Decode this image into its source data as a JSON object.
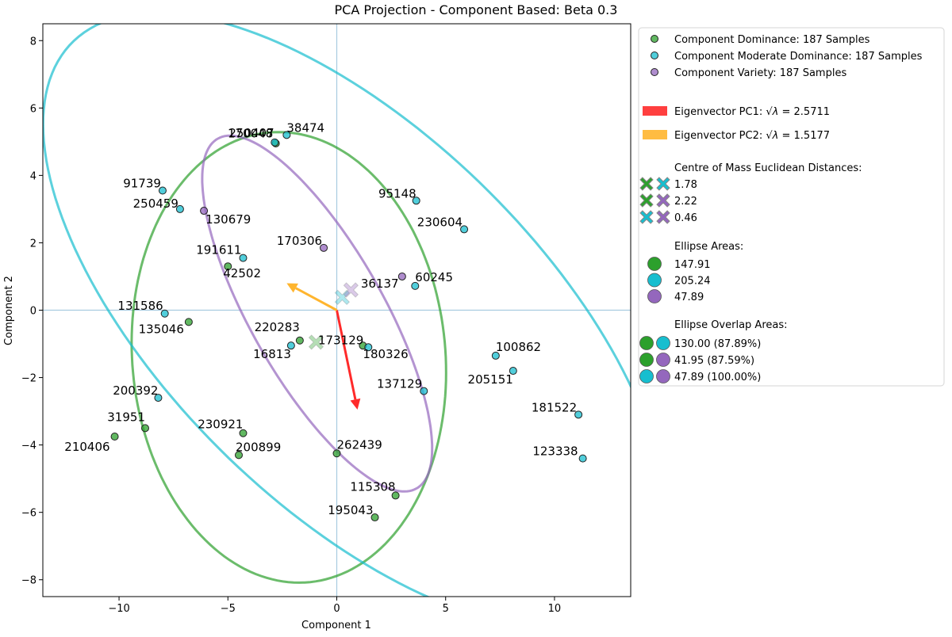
{
  "chart_data": {
    "type": "scatter",
    "title": "PCA Projection - Component Based: Beta 0.3",
    "xlabel": "Component 1",
    "ylabel": "Component 2",
    "xlim": [
      -13.5,
      13.5
    ],
    "ylim": [
      -8.5,
      8.5
    ],
    "xticks": [
      -10,
      -5,
      0,
      5,
      10
    ],
    "yticks": [
      -8,
      -6,
      -4,
      -2,
      0,
      2,
      4,
      6,
      8
    ],
    "xtick_labels": [
      "−10",
      "−5",
      "0",
      "5",
      "10"
    ],
    "ytick_labels": [
      "−8",
      "−6",
      "−4",
      "−2",
      "0",
      "2",
      "4",
      "6",
      "8"
    ],
    "grid": false,
    "reference_lines": {
      "x": 0,
      "y": 0,
      "color": "#a8cbe0"
    },
    "colors": {
      "dominance": "#2ca02c",
      "moderate": "#17becf",
      "variety": "#9467bd",
      "pc1": "#ff2a2a",
      "pc2": "#ffb52e"
    },
    "series": [
      {
        "name": "Component Dominance: 187 Samples",
        "key": "dominance",
        "points": [
          {
            "x": -2.8,
            "y": 4.95,
            "label": "250407"
          },
          {
            "x": -5.0,
            "y": 1.3,
            "label": "42502"
          },
          {
            "x": -6.8,
            "y": -0.35,
            "label": "135046"
          },
          {
            "x": -1.7,
            "y": -0.9,
            "label": "220283"
          },
          {
            "x": 1.2,
            "y": -1.05,
            "label": "180326"
          },
          {
            "x": -8.8,
            "y": -3.5,
            "label": "31951"
          },
          {
            "x": -10.2,
            "y": -3.75,
            "label": "210406"
          },
          {
            "x": -4.3,
            "y": -3.65,
            "label": "230921"
          },
          {
            "x": -4.5,
            "y": -4.3,
            "label": "200899"
          },
          {
            "x": 0.0,
            "y": -4.25,
            "label": "262439"
          },
          {
            "x": 2.7,
            "y": -5.5,
            "label": "115308"
          },
          {
            "x": 1.75,
            "y": -6.15,
            "label": "195043"
          }
        ]
      },
      {
        "name": "Component Moderate Dominance: 187 Samples",
        "key": "moderate",
        "points": [
          {
            "x": -2.3,
            "y": 5.2,
            "label": "38474"
          },
          {
            "x": -2.85,
            "y": 4.98,
            "label": "170048"
          },
          {
            "x": -8.0,
            "y": 3.55,
            "label": "91739"
          },
          {
            "x": -7.2,
            "y": 3.0,
            "label": "250459"
          },
          {
            "x": -4.3,
            "y": 1.55,
            "label": "191611"
          },
          {
            "x": -7.9,
            "y": -0.1,
            "label": "131586"
          },
          {
            "x": -2.1,
            "y": -1.05,
            "label": "16813"
          },
          {
            "x": 1.45,
            "y": -1.1,
            "label": "173129"
          },
          {
            "x": 3.65,
            "y": 3.25,
            "label": "95148"
          },
          {
            "x": 5.85,
            "y": 2.4,
            "label": "230604"
          },
          {
            "x": 3.6,
            "y": 0.72,
            "label": "60245"
          },
          {
            "x": 7.3,
            "y": -1.35,
            "label": "100862"
          },
          {
            "x": 8.1,
            "y": -1.8,
            "label": "205151"
          },
          {
            "x": 4.0,
            "y": -2.4,
            "label": "137129"
          },
          {
            "x": -8.2,
            "y": -2.6,
            "label": "200392"
          },
          {
            "x": 11.1,
            "y": -3.1,
            "label": "181522"
          },
          {
            "x": 11.3,
            "y": -4.4,
            "label": "123338"
          }
        ]
      },
      {
        "name": "Component Variety: 187 Samples",
        "key": "variety",
        "points": [
          {
            "x": -6.1,
            "y": 2.95,
            "label": "130679"
          },
          {
            "x": -0.6,
            "y": 1.85,
            "label": "170306"
          },
          {
            "x": 3.0,
            "y": 1.0,
            "label": "36137"
          }
        ]
      }
    ],
    "centroids": [
      {
        "key": "dominance",
        "x": -0.95,
        "y": -0.95
      },
      {
        "key": "moderate",
        "x": 0.25,
        "y": 0.38
      },
      {
        "key": "variety",
        "x": 0.65,
        "y": 0.6
      }
    ],
    "eigenvectors": [
      {
        "label": "Eigenvector PC1: $\\sqrt{\\lambda}$ = 2.5711",
        "prefix": "Eigenvector PC1: ",
        "value_text": " = 2.5711",
        "key": "pc1",
        "x": 0.95,
        "y": -2.95
      },
      {
        "label": "Eigenvector PC2: $\\sqrt{\\lambda}$ = 1.5177",
        "prefix": "Eigenvector PC2: ",
        "value_text": " = 1.5177",
        "key": "pc2",
        "x": -2.3,
        "y": 0.8
      }
    ],
    "ellipses": [
      {
        "key": "dominance",
        "cx": -2.2,
        "cy": -1.4,
        "rx": 7.3,
        "ry": 6.6,
        "angle": -20
      },
      {
        "key": "moderate",
        "cx": 0.8,
        "cy": -0.3,
        "rx": 15.7,
        "ry": 6.4,
        "angle": -27
      },
      {
        "key": "variety",
        "cx": -0.9,
        "cy": -0.1,
        "rx": 7.0,
        "ry": 2.6,
        "angle": -45
      }
    ],
    "legend": {
      "placement": "outside-right",
      "centre_heading": "Centre of Mass Euclidean Distances:",
      "distances": [
        {
          "pair": [
            "dominance",
            "moderate"
          ],
          "value": "1.78"
        },
        {
          "pair": [
            "dominance",
            "variety"
          ],
          "value": "2.22"
        },
        {
          "pair": [
            "moderate",
            "variety"
          ],
          "value": "0.46"
        }
      ],
      "areas_heading": "Ellipse Areas:",
      "areas": [
        {
          "key": "dominance",
          "value": "147.91"
        },
        {
          "key": "moderate",
          "value": "205.24"
        },
        {
          "key": "variety",
          "value": "47.89"
        }
      ],
      "overlap_heading": "Ellipse Overlap Areas:",
      "overlaps": [
        {
          "pair": [
            "dominance",
            "moderate"
          ],
          "value": "130.00 (87.89%)"
        },
        {
          "pair": [
            "dominance",
            "variety"
          ],
          "value": "41.95 (87.59%)"
        },
        {
          "pair": [
            "moderate",
            "variety"
          ],
          "value": "47.89 (100.00%)"
        }
      ]
    }
  }
}
